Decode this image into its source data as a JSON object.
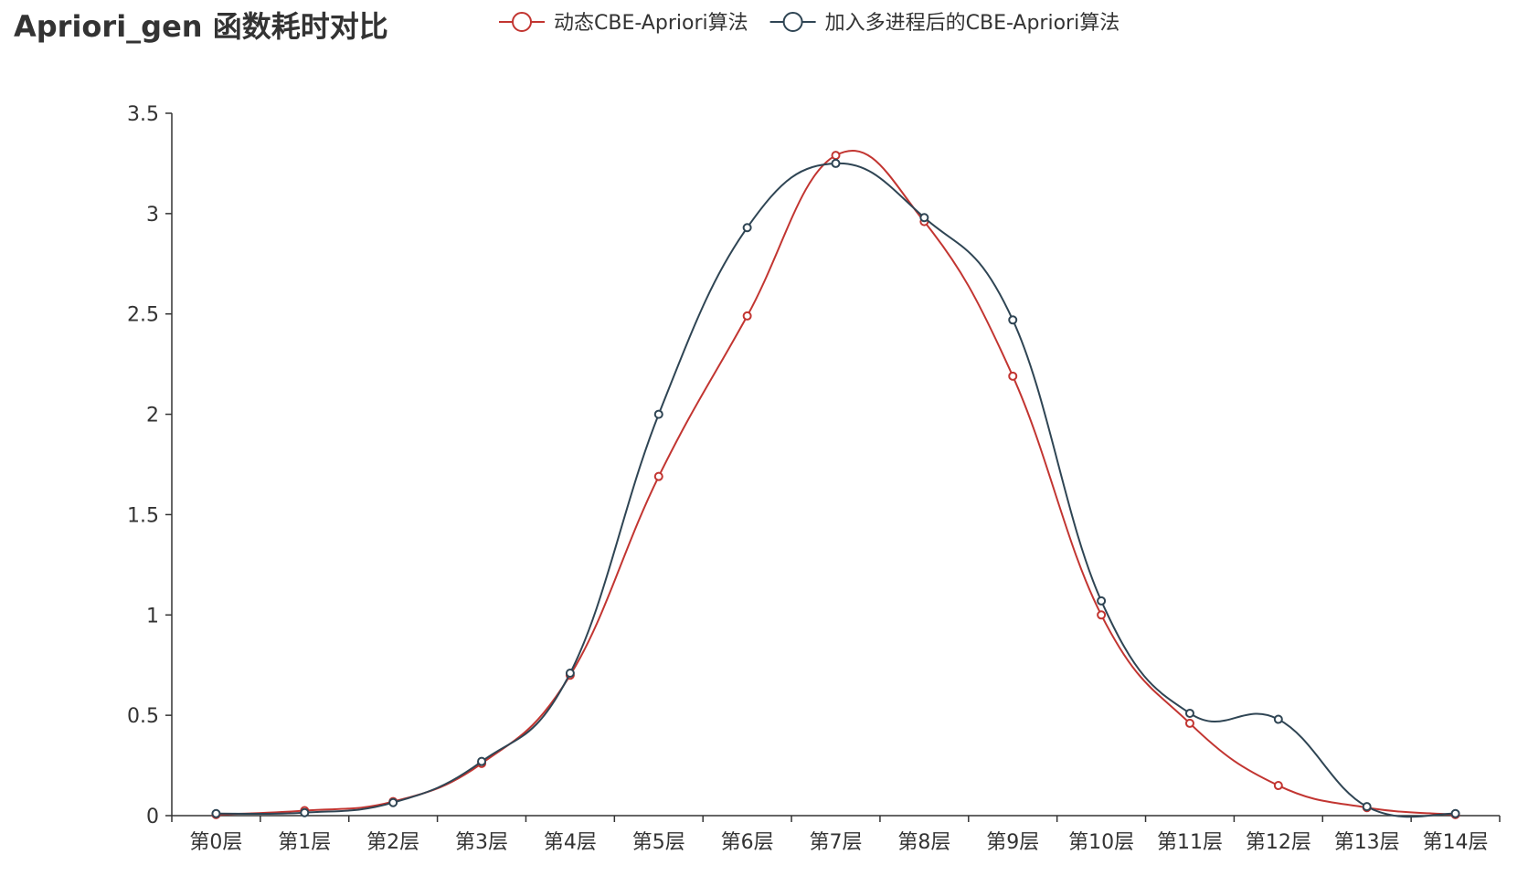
{
  "chart_data": {
    "type": "line",
    "smooth": true,
    "title": "Apriori_gen 函数耗时对比",
    "xlabel": "",
    "ylabel": "",
    "categories": [
      "第0层",
      "第1层",
      "第2层",
      "第3层",
      "第4层",
      "第5层",
      "第6层",
      "第7层",
      "第8层",
      "第9层",
      "第10层",
      "第11层",
      "第12层",
      "第13层",
      "第14层"
    ],
    "ylim": [
      0,
      3.5
    ],
    "yticks": [
      "0",
      "0.5",
      "1",
      "1.5",
      "2",
      "2.5",
      "3",
      "3.5"
    ],
    "grid": false,
    "legend_position": "top-center",
    "series": [
      {
        "name": "动态CBE-Apriori算法",
        "color": "#c23531",
        "values": [
          0.005,
          0.025,
          0.07,
          0.26,
          0.7,
          1.69,
          2.49,
          3.29,
          2.96,
          2.19,
          1.0,
          0.46,
          0.15,
          0.04,
          0.005
        ]
      },
      {
        "name": "加入多进程后的CBE-Apriori算法",
        "color": "#2f4554",
        "values": [
          0.01,
          0.015,
          0.065,
          0.27,
          0.71,
          2.0,
          2.93,
          3.25,
          2.98,
          2.47,
          1.07,
          0.51,
          0.48,
          0.045,
          0.01
        ]
      }
    ]
  }
}
